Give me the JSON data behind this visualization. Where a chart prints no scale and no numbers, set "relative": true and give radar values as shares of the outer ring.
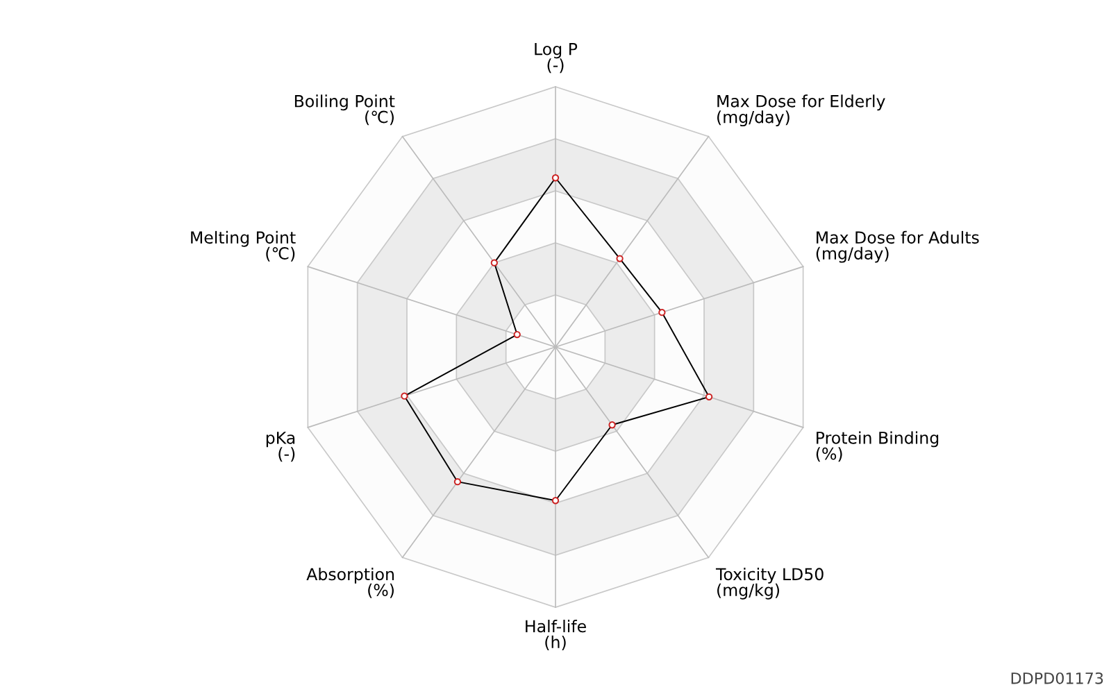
{
  "chart_data": {
    "type": "radar",
    "relative": true,
    "grid": true,
    "marker": "circle",
    "line_style": "solid",
    "categories": [
      "Log P\n(-)",
      "Max Dose for Elderly\n(mg/day)",
      "Max Dose for Adults\n(mg/day)",
      "Protein Binding\n(%)",
      "Toxicity LD50\n(mg/kg)",
      "Half-life\n(h)",
      "Absorption\n(%)",
      "pKa\n(-)",
      "Melting Point\n(℃)",
      "Boiling Point\n(℃)"
    ],
    "series": [
      {
        "color": "#000000",
        "values": [
          0.65,
          0.42,
          0.43,
          0.62,
          0.37,
          0.59,
          0.64,
          0.61,
          0.155,
          0.4
        ]
      }
    ],
    "annotations": [
      "DDPD01173"
    ]
  }
}
